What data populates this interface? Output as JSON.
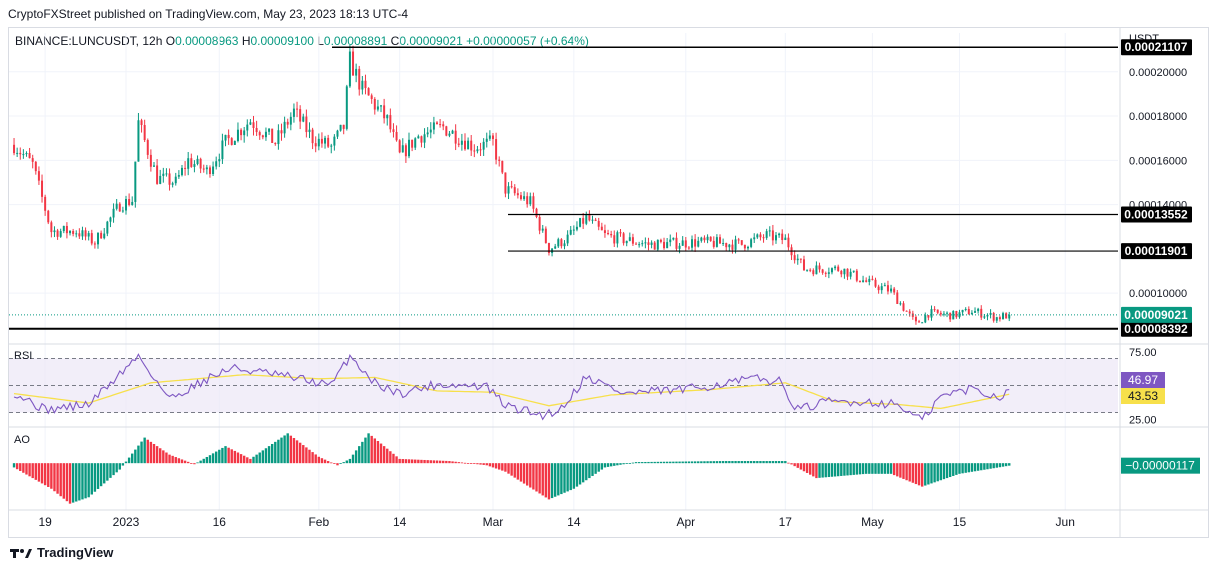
{
  "header": {
    "text": "CryptoFXStreet published on TradingView.com, May 23, 2023 18:13 UTC-4"
  },
  "ohlc": {
    "symbol": "BINANCE:LUNCUSDT, 12h",
    "o_label": "O",
    "o": "0.00008963",
    "h_label": "H",
    "h": "0.00009100",
    "l_label": "L",
    "l": "0.00008891",
    "c_label": "C",
    "c": "0.00009021",
    "change": "+0.00000057 (+0.64%)"
  },
  "currency": "USDT",
  "footer": {
    "brand": "TradingView"
  },
  "colors": {
    "up": "#089981",
    "down": "#f23645",
    "rsi": "#7e57c2",
    "rsi_ma": "#f7e04b",
    "level": "#000000"
  },
  "chart_data": [
    {
      "type": "candlestick",
      "pane": "price",
      "interval": "12h",
      "x_labels": [
        "19",
        "2023",
        "16",
        "Feb",
        "14",
        "Mar",
        "14",
        "Apr",
        "17",
        "May",
        "15",
        "Jun"
      ],
      "y_ticks": [
        "0.00020000",
        "0.00018000",
        "0.00016000",
        "0.00014000",
        "0.00010000"
      ],
      "ylim": [
        7.75e-05,
        0.0002175
      ],
      "levels": [
        {
          "label": "0.00021107",
          "value": 0.00021107
        },
        {
          "label": "0.00013552",
          "value": 0.00013552
        },
        {
          "label": "0.00011901",
          "value": 0.00011901
        },
        {
          "label": "0.00008392",
          "value": 8.392e-05
        }
      ],
      "last_price_label": "0.00009021",
      "last_price": 9.021e-05,
      "anchors": [
        [
          "2022-12-14",
          0.000167
        ],
        [
          "2022-12-17",
          0.000158
        ],
        [
          "2022-12-20",
          0.000128
        ],
        [
          "2022-12-24",
          0.000128
        ],
        [
          "2022-12-27",
          0.000123
        ],
        [
          "2022-12-31",
          0.00014
        ],
        [
          "2023-01-02",
          0.000142
        ],
        [
          "2023-01-03",
          0.000177
        ],
        [
          "2023-01-06",
          0.000152
        ],
        [
          "2023-01-09",
          0.00015
        ],
        [
          "2023-01-11",
          0.00016
        ],
        [
          "2023-01-14",
          0.000155
        ],
        [
          "2023-01-17",
          0.000168
        ],
        [
          "2023-01-21",
          0.000178
        ],
        [
          "2023-01-25",
          0.000168
        ],
        [
          "2023-01-28",
          0.000182
        ],
        [
          "2023-01-31",
          0.00017
        ],
        [
          "2023-02-03",
          0.000166
        ],
        [
          "2023-02-05",
          0.000175
        ],
        [
          "2023-02-06",
          0.000205
        ],
        [
          "2023-02-08",
          0.000192
        ],
        [
          "2023-02-12",
          0.000178
        ],
        [
          "2023-02-14",
          0.000162
        ],
        [
          "2023-02-17",
          0.000171
        ],
        [
          "2023-02-21",
          0.000175
        ],
        [
          "2023-02-26",
          0.000166
        ],
        [
          "2023-03-01",
          0.000168
        ],
        [
          "2023-03-03",
          0.000147
        ],
        [
          "2023-03-07",
          0.000141
        ],
        [
          "2023-03-10",
          0.00012
        ],
        [
          "2023-03-13",
          0.000125
        ],
        [
          "2023-03-16",
          0.000134
        ],
        [
          "2023-03-19",
          0.000126
        ],
        [
          "2023-03-26",
          0.000122
        ],
        [
          "2023-04-03",
          0.000123
        ],
        [
          "2023-04-10",
          0.000122
        ],
        [
          "2023-04-14",
          0.000126
        ],
        [
          "2023-04-17",
          0.000124
        ],
        [
          "2023-04-20",
          0.000111
        ],
        [
          "2023-04-26",
          0.000111
        ],
        [
          "2023-04-30",
          0.000105
        ],
        [
          "2023-05-04",
          0.000101
        ],
        [
          "2023-05-08",
          8.6e-05
        ],
        [
          "2023-05-10",
          9.1e-05
        ],
        [
          "2023-05-14",
          9e-05
        ],
        [
          "2023-05-17",
          9.2e-05
        ],
        [
          "2023-05-21",
          8.9e-05
        ],
        [
          "2023-05-23",
          9.02e-05
        ]
      ]
    },
    {
      "type": "line",
      "pane": "rsi",
      "title": "RSI",
      "y_ticks": [
        "75.00",
        "25.00"
      ],
      "ylim": [
        20,
        80
      ],
      "bands": [
        70,
        50,
        30
      ],
      "rsi_label": "46.97",
      "rsi_last": 46.97,
      "ma_label": "43.53",
      "ma_last": 43.53,
      "rsi_anchors": [
        [
          "2022-12-14",
          45
        ],
        [
          "2022-12-19",
          32
        ],
        [
          "2022-12-26",
          36
        ],
        [
          "2023-01-03",
          72
        ],
        [
          "2023-01-08",
          40
        ],
        [
          "2023-01-14",
          55
        ],
        [
          "2023-01-18",
          63
        ],
        [
          "2023-01-25",
          58
        ],
        [
          "2023-01-30",
          54
        ],
        [
          "2023-02-03",
          50
        ],
        [
          "2023-02-06",
          72
        ],
        [
          "2023-02-10",
          52
        ],
        [
          "2023-02-14",
          44
        ],
        [
          "2023-02-20",
          51
        ],
        [
          "2023-02-28",
          49
        ],
        [
          "2023-03-03",
          35
        ],
        [
          "2023-03-09",
          28
        ],
        [
          "2023-03-12",
          33
        ],
        [
          "2023-03-16",
          57
        ],
        [
          "2023-03-22",
          44
        ],
        [
          "2023-04-01",
          47
        ],
        [
          "2023-04-12",
          55
        ],
        [
          "2023-04-16",
          53
        ],
        [
          "2023-04-19",
          32
        ],
        [
          "2023-04-24",
          38
        ],
        [
          "2023-04-30",
          38
        ],
        [
          "2023-05-05",
          36
        ],
        [
          "2023-05-09",
          24
        ],
        [
          "2023-05-12",
          42
        ],
        [
          "2023-05-17",
          48
        ],
        [
          "2023-05-21",
          41
        ],
        [
          "2023-05-23",
          46.97
        ]
      ],
      "ma_anchors": [
        [
          "2022-12-14",
          44
        ],
        [
          "2022-12-26",
          37
        ],
        [
          "2023-01-05",
          52
        ],
        [
          "2023-01-20",
          58
        ],
        [
          "2023-02-01",
          55
        ],
        [
          "2023-02-10",
          56
        ],
        [
          "2023-02-20",
          46
        ],
        [
          "2023-03-01",
          45
        ],
        [
          "2023-03-10",
          35
        ],
        [
          "2023-03-20",
          43
        ],
        [
          "2023-04-05",
          47
        ],
        [
          "2023-04-17",
          52
        ],
        [
          "2023-04-25",
          38
        ],
        [
          "2023-05-05",
          36
        ],
        [
          "2023-05-12",
          33
        ],
        [
          "2023-05-23",
          43.53
        ]
      ]
    },
    {
      "type": "bar",
      "pane": "ao",
      "title": "AO",
      "value_label": "−0.00000117",
      "last": -1.17e-06,
      "ylim": [
        -2.15e-05,
        1.65e-05
      ],
      "anchors": [
        [
          "2022-12-14",
          -2e-06
        ],
        [
          "2022-12-20",
          -1.2e-05
        ],
        [
          "2022-12-23",
          -1.9e-05
        ],
        [
          "2022-12-26",
          -1.6e-05
        ],
        [
          "2022-12-31",
          -3e-06
        ],
        [
          "2023-01-04",
          1.2e-05
        ],
        [
          "2023-01-08",
          4e-06
        ],
        [
          "2023-01-12",
          -5e-07
        ],
        [
          "2023-01-17",
          8e-06
        ],
        [
          "2023-01-21",
          2e-06
        ],
        [
          "2023-01-27",
          1.4e-05
        ],
        [
          "2023-02-01",
          3e-06
        ],
        [
          "2023-02-04",
          -1e-06
        ],
        [
          "2023-02-06",
          2e-06
        ],
        [
          "2023-02-09",
          1.4e-05
        ],
        [
          "2023-02-14",
          2e-06
        ],
        [
          "2023-02-22",
          1e-06
        ],
        [
          "2023-02-28",
          -1e-06
        ],
        [
          "2023-03-03",
          -4e-06
        ],
        [
          "2023-03-10",
          -1.7e-05
        ],
        [
          "2023-03-14",
          -1.2e-05
        ],
        [
          "2023-03-19",
          -2e-06
        ],
        [
          "2023-03-24",
          5e-07
        ],
        [
          "2023-04-07",
          1e-06
        ],
        [
          "2023-04-17",
          1e-06
        ],
        [
          "2023-04-22",
          -7e-06
        ],
        [
          "2023-04-30",
          -5e-06
        ],
        [
          "2023-05-04",
          -5e-06
        ],
        [
          "2023-05-09",
          -1.1e-05
        ],
        [
          "2023-05-15",
          -5e-06
        ],
        [
          "2023-05-23",
          -1.17e-06
        ]
      ]
    }
  ]
}
